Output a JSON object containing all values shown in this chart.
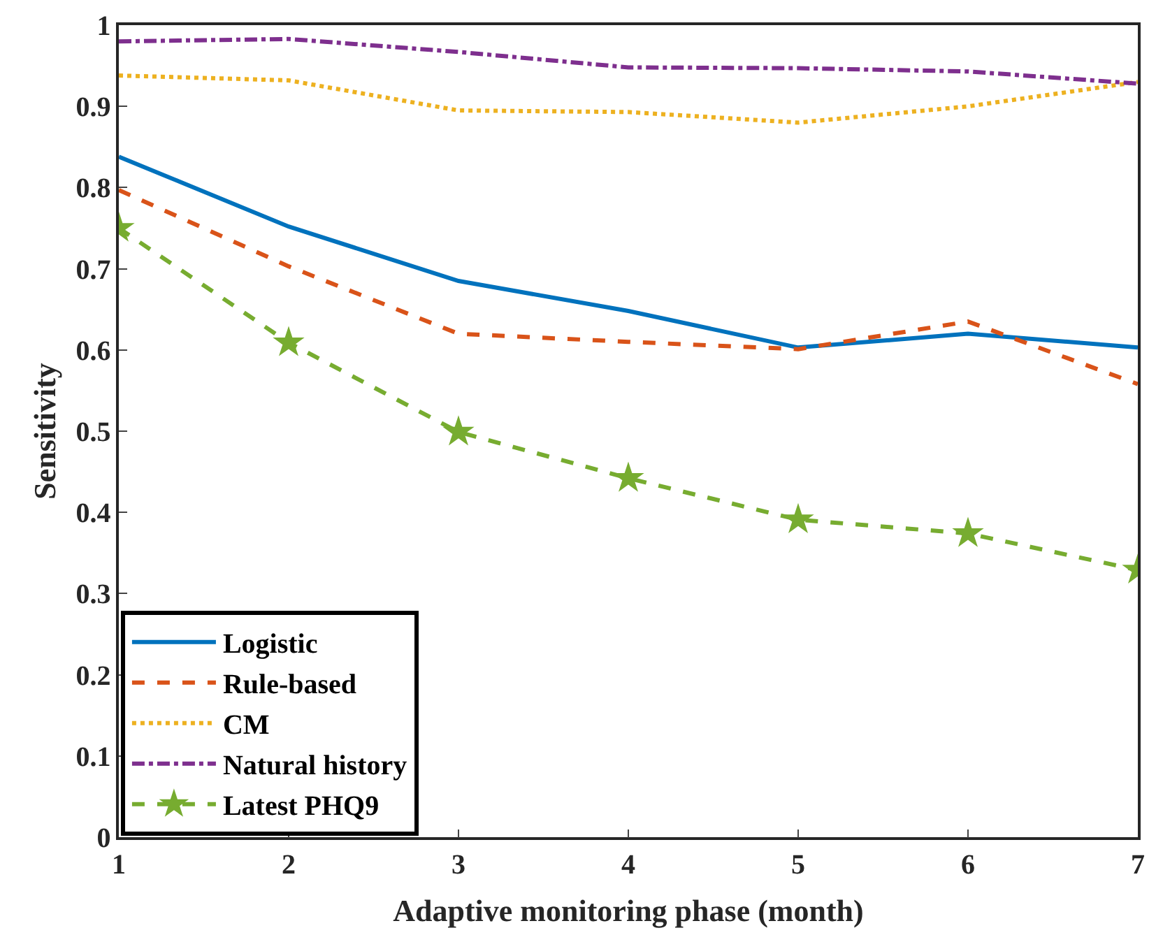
{
  "chart_data": {
    "type": "line",
    "xlabel": "Adaptive monitoring phase (month)",
    "ylabel": "Sensitivity",
    "x": [
      1,
      2,
      3,
      4,
      5,
      6,
      7
    ],
    "series": [
      {
        "name": "Logistic",
        "color": "#0072bd",
        "line_style": "solid",
        "marker": "none",
        "values": [
          0.838,
          0.752,
          0.685,
          0.648,
          0.603,
          0.62,
          0.603
        ]
      },
      {
        "name": "Rule-based",
        "color": "#d95319",
        "line_style": "dashed",
        "marker": "none",
        "values": [
          0.797,
          0.703,
          0.62,
          0.61,
          0.601,
          0.635,
          0.558
        ]
      },
      {
        "name": "CM",
        "color": "#edb120",
        "line_style": "dotted",
        "marker": "none",
        "values": [
          0.938,
          0.932,
          0.895,
          0.893,
          0.88,
          0.9,
          0.93
        ]
      },
      {
        "name": "Natural history",
        "color": "#7e2f8e",
        "line_style": "dashdot",
        "marker": "none",
        "values": [
          0.98,
          0.983,
          0.967,
          0.948,
          0.947,
          0.943,
          0.928
        ]
      },
      {
        "name": "Latest PHQ9",
        "color": "#77ac30",
        "line_style": "dashed",
        "marker": "star",
        "values": [
          0.75,
          0.609,
          0.499,
          0.442,
          0.391,
          0.374,
          0.329
        ]
      }
    ],
    "xlim": [
      1,
      7
    ],
    "xticks": [
      1,
      2,
      3,
      4,
      5,
      6,
      7
    ],
    "ylim": [
      0,
      1
    ],
    "yticks": [
      0,
      0.1,
      0.2,
      0.3,
      0.4,
      0.5,
      0.6,
      0.7,
      0.8,
      0.9,
      1
    ],
    "legend": "bottom left"
  }
}
